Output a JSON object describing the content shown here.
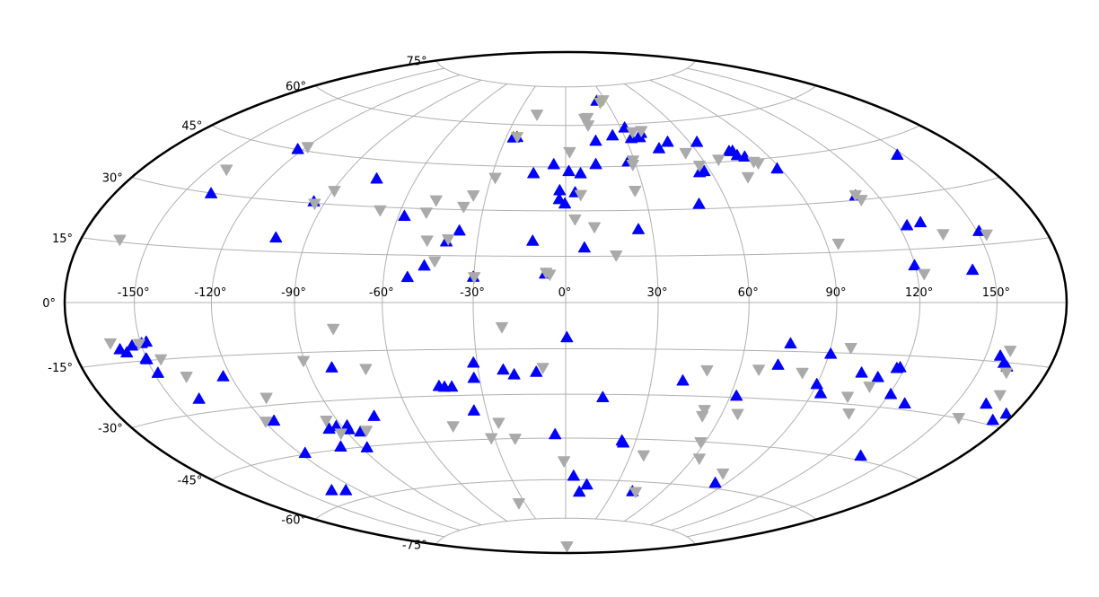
{
  "chart_data": {
    "type": "scatter",
    "projection": "hammer",
    "title": "",
    "grid": true,
    "x_ticks": [
      {
        "value": -150,
        "label": "-150°"
      },
      {
        "value": -120,
        "label": "-120°"
      },
      {
        "value": -90,
        "label": "-90°"
      },
      {
        "value": -60,
        "label": "-60°"
      },
      {
        "value": -30,
        "label": "-30°"
      },
      {
        "value": 0,
        "label": "0°"
      },
      {
        "value": 30,
        "label": "30°"
      },
      {
        "value": 60,
        "label": "60°"
      },
      {
        "value": 90,
        "label": "90°"
      },
      {
        "value": 120,
        "label": "120°"
      },
      {
        "value": 150,
        "label": "150°"
      }
    ],
    "y_ticks": [
      {
        "value": -75,
        "label": "-75°"
      },
      {
        "value": -60,
        "label": "-60°"
      },
      {
        "value": -45,
        "label": "-45°"
      },
      {
        "value": -30,
        "label": "-30°"
      },
      {
        "value": -15,
        "label": "-15°"
      },
      {
        "value": 0,
        "label": "0°"
      },
      {
        "value": 15,
        "label": "15°"
      },
      {
        "value": 30,
        "label": "30°"
      },
      {
        "value": 45,
        "label": "45°"
      },
      {
        "value": 60,
        "label": "60°"
      },
      {
        "value": 75,
        "label": "75°"
      }
    ],
    "series": [
      {
        "marker": "triangle-up",
        "color": "#0000ff",
        "points": [
          [
            -30.2,
            8.2
          ],
          [
            -52.0,
            8.0
          ],
          [
            -6.7,
            9.3
          ],
          [
            119.8,
            10.4
          ],
          [
            141.8,
            8.6
          ],
          [
            -46.8,
            11.7
          ],
          [
            150.9,
            18.5
          ],
          [
            -101.4,
            19.1
          ],
          [
            -40.6,
            19.5
          ],
          [
            -11.2,
            20.0
          ],
          [
            6.3,
            17.8
          ],
          [
            123.3,
            21.7
          ],
          [
            129.3,
            22.2
          ],
          [
            -36.8,
            23.1
          ],
          [
            25.2,
            23.7
          ],
          [
            -57.8,
            27.4
          ],
          [
            -138.2,
            29.9
          ],
          [
            -94.5,
            30.5
          ],
          [
            111.1,
            31.3
          ],
          [
            49.2,
            31.6
          ],
          [
            -0.3,
            32.4
          ],
          [
            -2.4,
            33.9
          ],
          [
            3.6,
            36.2
          ],
          [
            -2.3,
            36.9
          ],
          [
            -76.0,
            38.9
          ],
          [
            88.6,
            41.5
          ],
          [
            147.2,
            40.5
          ],
          [
            55.2,
            42.0
          ],
          [
            57.4,
            42.3
          ],
          [
            -13.2,
            42.7
          ],
          [
            6.1,
            42.7
          ],
          [
            1.3,
            43.5
          ],
          [
            -122.5,
            45.1
          ],
          [
            79.3,
            46.1
          ],
          [
            12.9,
            45.9
          ],
          [
            -5.1,
            45.9
          ],
          [
            76.6,
            46.8
          ],
          [
            76.3,
            48.3
          ],
          [
            27.1,
            46.6
          ],
          [
            63.6,
            52.2
          ],
          [
            74.6,
            48.3
          ],
          [
            43.6,
            50.8
          ],
          [
            49.6,
            52.9
          ],
          [
            14.8,
            54.2
          ],
          [
            32.9,
            54.8
          ],
          [
            37.3,
            55.0
          ],
          [
            -26.4,
            55.2
          ],
          [
            -24.6,
            55.4
          ],
          [
            24.0,
            56.0
          ],
          [
            39.2,
            56.5
          ],
          [
            32.2,
            58.7
          ],
          [
            23.4,
            69.2
          ],
          [
            -159.6,
            -11.7
          ],
          [
            -157.2,
            -12.6
          ],
          [
            -154.0,
            -11.0
          ],
          [
            -149.7,
            -10.5
          ],
          [
            -147.6,
            -10.2
          ],
          [
            -150.3,
            -14.5
          ],
          [
            -150.1,
            -14.7
          ],
          [
            -148.4,
            -18.4
          ],
          [
            0.4,
            -11.3
          ],
          [
            75.5,
            -12.6
          ],
          [
            90.6,
            -15.4
          ],
          [
            156.0,
            -13.5
          ],
          [
            158.9,
            -15.2
          ],
          [
            161.0,
            -16.0
          ],
          [
            73.1,
            -19.3
          ],
          [
            117.1,
            -18.7
          ],
          [
            118.2,
            -18.4
          ],
          [
            104.6,
            -20.6
          ],
          [
            111.6,
            -21.6
          ],
          [
            -81.1,
            -19.9
          ],
          [
            -31.3,
            -19.4
          ],
          [
            -21.4,
            -21.8
          ],
          [
            -17.8,
            -23.4
          ],
          [
            -10.1,
            -22.6
          ],
          [
            -32.0,
            -24.4
          ],
          [
            120.6,
            -26.1
          ],
          [
            129.0,
            -28.3
          ],
          [
            -43.1,
            -27.1
          ],
          [
            -45.0,
            -26.8
          ],
          [
            -40.5,
            -27.1
          ],
          [
            41.1,
            -25.1
          ],
          [
            90.0,
            -24.7
          ],
          [
            93.3,
            -27.4
          ],
          [
            -123.1,
            -20.8
          ],
          [
            -138.7,
            -26.2
          ],
          [
            -115.8,
            -34.5
          ],
          [
            -74.3,
            -35.6
          ],
          [
            -34.8,
            -35.2
          ],
          [
            13.5,
            -31.0
          ],
          [
            62.3,
            -29.5
          ],
          [
            -96.2,
            -38.5
          ],
          [
            -92.4,
            -37.9
          ],
          [
            -88.3,
            -39.2
          ],
          [
            -87.8,
            -38.0
          ],
          [
            -84.3,
            -40.2
          ],
          [
            -117.7,
            -44.7
          ],
          [
            -98.7,
            -44.2
          ],
          [
            -87.6,
            -45.3
          ],
          [
            -4.4,
            -43.7
          ],
          [
            24.1,
            -45.7
          ],
          [
            24.9,
            -46.4
          ],
          [
            4.3,
            -58.6
          ],
          [
            8.7,
            -64.6
          ],
          [
            12.4,
            -61.8
          ],
          [
            41.9,
            -63.7
          ],
          [
            83.9,
            -58.2
          ],
          [
            -126.8,
            -56.8
          ],
          [
            -133.9,
            -55.9
          ],
          [
            134.6,
            -43.8
          ],
          [
            173.1,
            -28.8
          ],
          [
            176.3,
            -26.8
          ],
          [
            163.2,
            -25.5
          ]
        ]
      },
      {
        "marker": "triangle-down",
        "color": "#aaaaaa",
        "points": [
          [
            -162.7,
            15.6
          ],
          [
            -142.3,
            36.6
          ],
          [
            -119.5,
            46.2
          ],
          [
            -93.7,
            29.9
          ],
          [
            -89.4,
            34.2
          ],
          [
            -67.6,
            29.0
          ],
          [
            -48.3,
            32.9
          ],
          [
            -50.3,
            28.8
          ],
          [
            -47.3,
            19.8
          ],
          [
            -43.5,
            13.2
          ],
          [
            -40.1,
            20.3
          ],
          [
            -34.9,
            34.9
          ],
          [
            -37.3,
            31.0
          ],
          [
            -28.4,
            41.0
          ],
          [
            -24.6,
            55.5
          ],
          [
            -18.0,
            64.0
          ],
          [
            1.8,
            50.3
          ],
          [
            5.7,
            35.4
          ],
          [
            3.3,
            27.2
          ],
          [
            10.0,
            24.6
          ],
          [
            16.8,
            15.3
          ],
          [
            -6.4,
            9.7
          ],
          [
            -5.2,
            9.1
          ],
          [
            -29.9,
            8.2
          ],
          [
            26.6,
            36.6
          ],
          [
            28.7,
            45.5
          ],
          [
            29.4,
            47.0
          ],
          [
            35.2,
            57.0
          ],
          [
            40.1,
            57.3
          ],
          [
            54.5,
            48.8
          ],
          [
            56.9,
            44.3
          ],
          [
            66.9,
            45.9
          ],
          [
            73.8,
            39.6
          ],
          [
            94.3,
            17.6
          ],
          [
            81.3,
            44.3
          ],
          [
            82.7,
            43.7
          ],
          [
            111.3,
            31.5
          ],
          [
            112.2,
            30.0
          ],
          [
            122.7,
            8.0
          ],
          [
            135.7,
            18.6
          ],
          [
            153.3,
            17.5
          ],
          [
            12.6,
            60.0
          ],
          [
            11.4,
            62.5
          ],
          [
            13.1,
            62.8
          ],
          [
            25.4,
            68.5
          ],
          [
            28.3,
            69.4
          ],
          [
            -162.7,
            -10.0
          ],
          [
            -150.8,
            -10.6
          ],
          [
            -144.3,
            -14.9
          ],
          [
            -137.6,
            -20.0
          ],
          [
            -111.4,
            -27.7
          ],
          [
            -90.4,
            -17.5
          ],
          [
            -77.2,
            -8.0
          ],
          [
            -69.1,
            -20.6
          ],
          [
            -20.8,
            -7.9
          ],
          [
            -7.8,
            -21.2
          ],
          [
            -119.4,
            -34.4
          ],
          [
            -94.5,
            -35.9
          ],
          [
            -93.0,
            -40.2
          ],
          [
            -81.5,
            -40.0
          ],
          [
            -45.1,
            -40.1
          ],
          [
            -26.5,
            -39.4
          ],
          [
            -31.4,
            -44.6
          ],
          [
            -21.4,
            -45.0
          ],
          [
            -0.8,
            -53.2
          ],
          [
            -34.4,
            -68.5
          ],
          [
            5.8,
            -86.9
          ],
          [
            48.7,
            -21.5
          ],
          [
            66.8,
            -20.9
          ],
          [
            82.8,
            -21.4
          ],
          [
            97.2,
            -13.4
          ],
          [
            104.4,
            -27.8
          ],
          [
            110.4,
            -24.4
          ],
          [
            109.7,
            -32.6
          ],
          [
            159.3,
            -12.0
          ],
          [
            162.1,
            -17.4
          ],
          [
            166.0,
            -22.9
          ],
          [
            157.0,
            -29.9
          ],
          [
            52.6,
            -34.4
          ],
          [
            52.8,
            -36.4
          ],
          [
            66.1,
            -35.2
          ],
          [
            58.1,
            -45.1
          ],
          [
            36.1,
            -50.5
          ],
          [
            62.9,
            -50.6
          ],
          [
            81.5,
            -54.8
          ],
          [
            44.1,
            -63.8
          ]
        ]
      }
    ]
  }
}
